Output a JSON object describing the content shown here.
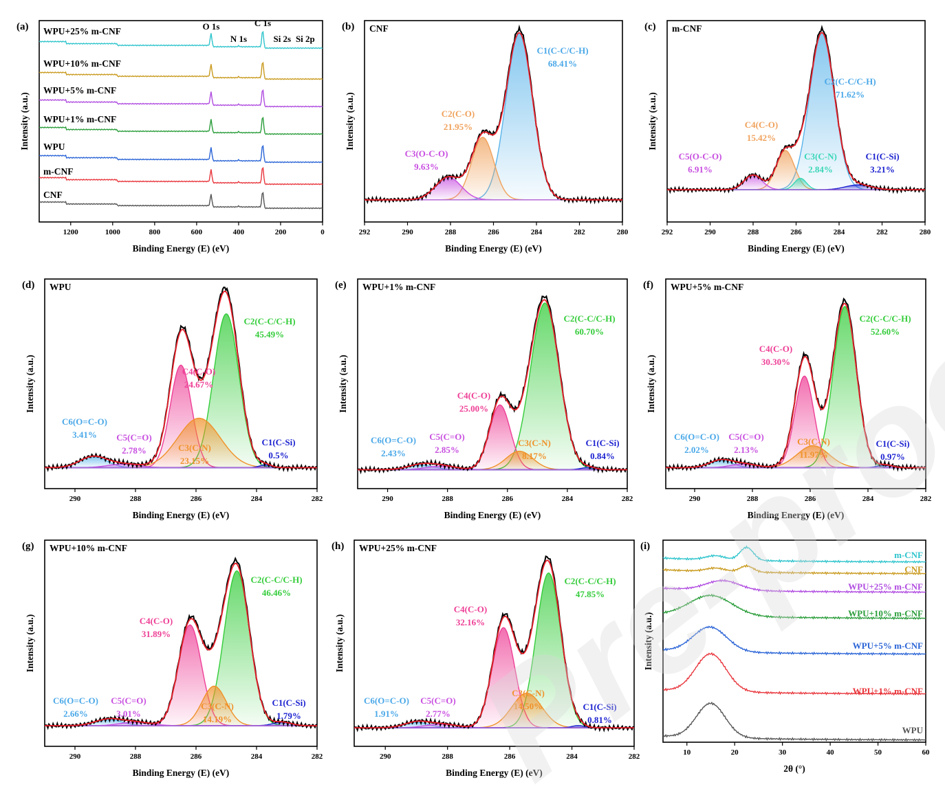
{
  "watermark": "Pre-proofs",
  "colors": {
    "raw": "#000000",
    "envelope": "#e8202a",
    "baseline": "#b06bd8"
  },
  "chart_data": [
    {
      "id": "a",
      "type": "line",
      "panel_label": "(a)",
      "xlabel": "Binding Energy (E) (eV)",
      "ylabel": "Intensity (a.u.)",
      "xlim": [
        1350,
        0
      ],
      "xticks": [
        1200,
        1000,
        800,
        600,
        400,
        200,
        0
      ],
      "peak_annotations": [
        {
          "text": "O 1s",
          "x": 531
        },
        {
          "text": "N 1s",
          "x": 400
        },
        {
          "text": "C 1s",
          "x": 285
        },
        {
          "text": "Si 2s",
          "x": 153
        },
        {
          "text": "Si 2p",
          "x": 102
        }
      ],
      "series": [
        {
          "name": "CNF",
          "color": "#555555"
        },
        {
          "name": "m-CNF",
          "color": "#e8363c"
        },
        {
          "name": "WPU",
          "color": "#2a64d6"
        },
        {
          "name": "WPU+1% m-CNF",
          "color": "#2a9d3a"
        },
        {
          "name": "WPU+5% m-CNF",
          "color": "#b04ce0"
        },
        {
          "name": "WPU+10% m-CNF",
          "color": "#c99a1e"
        },
        {
          "name": "WPU+25% m-CNF",
          "color": "#2ec4cc"
        }
      ]
    },
    {
      "id": "b",
      "type": "area",
      "panel_label": "(b)",
      "sample": "CNF",
      "xlabel": "Binding Energy (E) (eV)",
      "ylabel": "Intensity (a.u.)",
      "xlim": [
        292,
        280
      ],
      "xticks": [
        292,
        290,
        288,
        286,
        284,
        282,
        280
      ],
      "peaks": [
        {
          "name": "C1(C-C/C-H)",
          "pct": "68.41%",
          "center": 284.8,
          "height": 0.96,
          "width": 0.62,
          "color": "#5ab4ea"
        },
        {
          "name": "C2(C-O)",
          "pct": "21.95%",
          "center": 286.5,
          "height": 0.36,
          "width": 0.52,
          "color": "#f0a25c"
        },
        {
          "name": "C3(O-C-O)",
          "pct": "9.63%",
          "center": 288.1,
          "height": 0.13,
          "width": 0.6,
          "color": "#c84fe0"
        }
      ]
    },
    {
      "id": "c",
      "type": "area",
      "panel_label": "(c)",
      "sample": "m-CNF",
      "xlabel": "Binding Energy (E) (eV)",
      "ylabel": "Intensity (a.u.)",
      "xlim": [
        292,
        280
      ],
      "xticks": [
        292,
        290,
        288,
        286,
        284,
        282,
        280
      ],
      "peaks": [
        {
          "name": "C2(C-C/C-H)",
          "pct": "71.62%",
          "center": 284.8,
          "height": 0.96,
          "width": 0.58,
          "color": "#5ab4ea"
        },
        {
          "name": "C4(C-O)",
          "pct": "15.42%",
          "center": 286.5,
          "height": 0.24,
          "width": 0.42,
          "color": "#f0a25c"
        },
        {
          "name": "C5(O-C-O)",
          "pct": "6.91%",
          "center": 288.0,
          "height": 0.09,
          "width": 0.42,
          "color": "#c84fe0"
        },
        {
          "name": "C3(C-N)",
          "pct": "2.84%",
          "center": 285.8,
          "height": 0.07,
          "width": 0.28,
          "color": "#3ad6b8"
        },
        {
          "name": "C1(C-Si)",
          "pct": "3.21%",
          "center": 283.1,
          "height": 0.03,
          "width": 0.6,
          "color": "#1c22d0"
        }
      ]
    },
    {
      "id": "d",
      "type": "area",
      "panel_label": "(d)",
      "sample": "WPU",
      "xlabel": "Binding Energy (E) (eV)",
      "ylabel": "Intensity (a.u.)",
      "xlim": [
        291,
        282
      ],
      "xticks": [
        290,
        288,
        286,
        284,
        282
      ],
      "peaks": [
        {
          "name": "C2(C-C/C-H)",
          "pct": "45.49%",
          "center": 285.0,
          "height": 0.84,
          "width": 0.42,
          "color": "#34cc3a"
        },
        {
          "name": "C4(C-O)",
          "pct": "24.67%",
          "center": 286.5,
          "height": 0.56,
          "width": 0.35,
          "color": "#ee3f96"
        },
        {
          "name": "C3(C-N)",
          "pct": "23.15%",
          "center": 285.9,
          "height": 0.27,
          "width": 0.7,
          "color": "#f0922a"
        },
        {
          "name": "C6(O=C-O)",
          "pct": "3.41%",
          "center": 289.4,
          "height": 0.06,
          "width": 0.45,
          "color": "#5ab4ea"
        },
        {
          "name": "C5(C=O)",
          "pct": "2.78%",
          "center": 288.4,
          "height": 0.02,
          "width": 0.5,
          "color": "#c84fe0"
        },
        {
          "name": "C1(C-Si)",
          "pct": "0.5%",
          "center": 283.7,
          "height": 0.015,
          "width": 0.2,
          "color": "#1c22d0"
        }
      ]
    },
    {
      "id": "e",
      "type": "area",
      "panel_label": "(e)",
      "sample": "WPU+1% m-CNF",
      "xlabel": "Binding Energy (E) (eV)",
      "ylabel": "Intensity (a.u.)",
      "xlim": [
        291,
        282
      ],
      "xticks": [
        290,
        288,
        286,
        284,
        282
      ],
      "peaks": [
        {
          "name": "C2(C-C/C-H)",
          "pct": "60.70%",
          "center": 284.75,
          "height": 0.9,
          "width": 0.48,
          "color": "#34cc3a"
        },
        {
          "name": "C4(C-O)",
          "pct": "25.00%",
          "center": 286.25,
          "height": 0.35,
          "width": 0.35,
          "color": "#ee3f96"
        },
        {
          "name": "C3(C-N)",
          "pct": "8.17%",
          "center": 285.6,
          "height": 0.1,
          "width": 0.45,
          "color": "#f0922a"
        },
        {
          "name": "C6(O=C-O)",
          "pct": "2.43%",
          "center": 288.9,
          "height": 0.025,
          "width": 0.45,
          "color": "#5ab4ea"
        },
        {
          "name": "C5(C=O)",
          "pct": "2.85%",
          "center": 288.2,
          "height": 0.02,
          "width": 0.5,
          "color": "#c84fe0"
        },
        {
          "name": "C1(C-Si)",
          "pct": "0.84%",
          "center": 283.3,
          "height": 0.012,
          "width": 0.25,
          "color": "#1c22d0"
        }
      ]
    },
    {
      "id": "f",
      "type": "area",
      "panel_label": "(f)",
      "sample": "WPU+5% m-CNF",
      "xlabel": "Binding Energy (E) (eV)",
      "ylabel": "Intensity (a.u.)",
      "xlim": [
        291,
        282
      ],
      "xticks": [
        290,
        288,
        286,
        284,
        282
      ],
      "peaks": [
        {
          "name": "C2(C-C/C-H)",
          "pct": "52.60%",
          "center": 284.8,
          "height": 0.88,
          "width": 0.4,
          "color": "#34cc3a"
        },
        {
          "name": "C4(C-O)",
          "pct": "30.30%",
          "center": 286.2,
          "height": 0.5,
          "width": 0.33,
          "color": "#ee3f96"
        },
        {
          "name": "C3(C-N)",
          "pct": "11.97%",
          "center": 285.9,
          "height": 0.12,
          "width": 0.55,
          "color": "#f0922a"
        },
        {
          "name": "C6(O=C-O)",
          "pct": "2.02%",
          "center": 289.1,
          "height": 0.04,
          "width": 0.4,
          "color": "#5ab4ea"
        },
        {
          "name": "C5(C=O)",
          "pct": "2.13%",
          "center": 288.3,
          "height": 0.02,
          "width": 0.45,
          "color": "#c84fe0"
        },
        {
          "name": "C1(C-Si)",
          "pct": "0.97%",
          "center": 283.4,
          "height": 0.015,
          "width": 0.25,
          "color": "#1c22d0"
        }
      ]
    },
    {
      "id": "g",
      "type": "area",
      "panel_label": "(g)",
      "sample": "WPU+10% m-CNF",
      "xlabel": "Binding Energy (E) (eV)",
      "ylabel": "Intensity (a.u.)",
      "xlim": [
        291,
        282
      ],
      "xticks": [
        290,
        288,
        286,
        284,
        282
      ],
      "peaks": [
        {
          "name": "C2(C-C/C-H)",
          "pct": "46.46%",
          "center": 284.65,
          "height": 0.86,
          "width": 0.42,
          "color": "#34cc3a"
        },
        {
          "name": "C4(C-O)",
          "pct": "31.89%",
          "center": 286.2,
          "height": 0.56,
          "width": 0.38,
          "color": "#ee3f96"
        },
        {
          "name": "C3(C-N)",
          "pct": "14.19%",
          "center": 285.4,
          "height": 0.22,
          "width": 0.4,
          "color": "#f0922a"
        },
        {
          "name": "C6(O=C-O)",
          "pct": "2.66%",
          "center": 288.9,
          "height": 0.035,
          "width": 0.45,
          "color": "#5ab4ea"
        },
        {
          "name": "C5(C=O)",
          "pct": "3.01%",
          "center": 288.0,
          "height": 0.02,
          "width": 0.5,
          "color": "#c84fe0"
        },
        {
          "name": "C1(C-Si)",
          "pct": "1.79%",
          "center": 283.15,
          "height": 0.02,
          "width": 0.3,
          "color": "#1c22d0"
        }
      ]
    },
    {
      "id": "h",
      "type": "area",
      "panel_label": "(h)",
      "sample": "WPU+25% m-CNF",
      "xlabel": "Binding Energy (E) (eV)",
      "ylabel": "Intensity (a.u.)",
      "xlim": [
        291,
        282
      ],
      "xticks": [
        290,
        288,
        286,
        284,
        282
      ],
      "peaks": [
        {
          "name": "C2(C-C/C-H)",
          "pct": "47.85%",
          "center": 284.75,
          "height": 0.85,
          "width": 0.4,
          "color": "#34cc3a"
        },
        {
          "name": "C4(C-O)",
          "pct": "32.16%",
          "center": 286.2,
          "height": 0.55,
          "width": 0.36,
          "color": "#ee3f96"
        },
        {
          "name": "C3(C-N)",
          "pct": "14.50%",
          "center": 285.45,
          "height": 0.19,
          "width": 0.48,
          "color": "#f0922a"
        },
        {
          "name": "C6(O=C-O)",
          "pct": "1.91%",
          "center": 289.0,
          "height": 0.03,
          "width": 0.4,
          "color": "#5ab4ea"
        },
        {
          "name": "C5(C=O)",
          "pct": "2.77%",
          "center": 288.2,
          "height": 0.02,
          "width": 0.5,
          "color": "#c84fe0"
        },
        {
          "name": "C1(C-Si)",
          "pct": "0.81%",
          "center": 283.8,
          "height": 0.012,
          "width": 0.2,
          "color": "#1c22d0"
        }
      ]
    },
    {
      "id": "i",
      "type": "line",
      "panel_label": "(i)",
      "xlabel": "2θ (°)",
      "ylabel": "Intensity (a.u.)",
      "xlim": [
        5,
        60
      ],
      "xticks": [
        10,
        20,
        30,
        40,
        50,
        60
      ],
      "series": [
        {
          "name": "WPU",
          "color": "#555555"
        },
        {
          "name": "WPU+1% m-CNF",
          "color": "#e8363c"
        },
        {
          "name": "WPU+5% m-CNF",
          "color": "#2a64d6"
        },
        {
          "name": "WPU+10% m-CNF",
          "color": "#2a9d3a"
        },
        {
          "name": "WPU+25% m-CNF",
          "color": "#b04ce0"
        },
        {
          "name": "CNF",
          "color": "#c99a1e"
        },
        {
          "name": "m-CNF",
          "color": "#2ec4cc"
        }
      ]
    }
  ]
}
